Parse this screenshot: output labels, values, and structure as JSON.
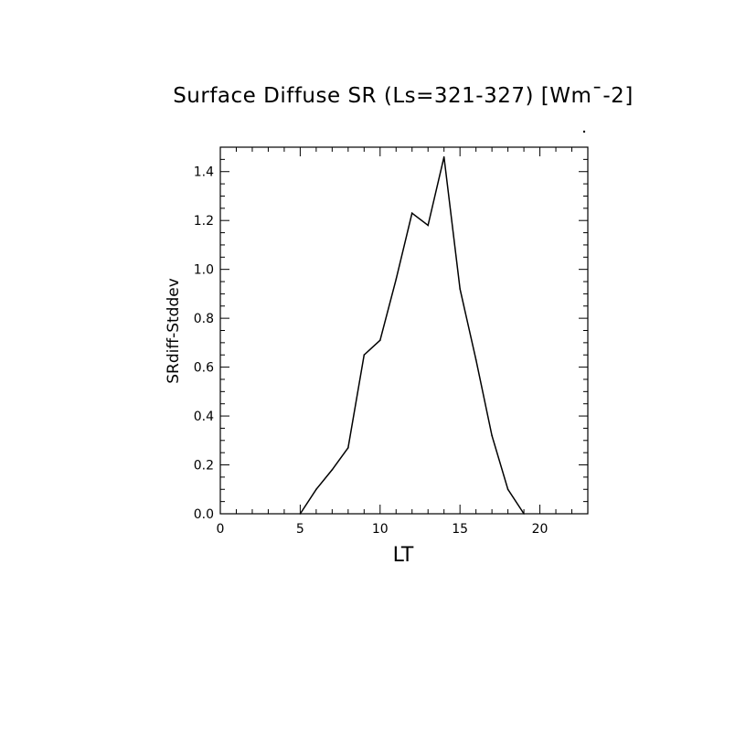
{
  "chart_data": {
    "type": "line",
    "title": "Surface Diffuse SR (Ls=321-327) [Wm¯-2]",
    "xlabel": "LT",
    "ylabel": "SRdiff-Stddev",
    "xlim": [
      0,
      23
    ],
    "ylim": [
      0,
      1.5
    ],
    "grid": false,
    "x_ticks": [
      0,
      5,
      10,
      15,
      20
    ],
    "x_tick_labels": [
      "0",
      "5",
      "10",
      "15",
      "20"
    ],
    "y_ticks": [
      0,
      0.2,
      0.4,
      0.6,
      0.8,
      1.0,
      1.2,
      1.4
    ],
    "y_tick_labels": [
      "0.0",
      "0.2",
      "0.4",
      "0.6",
      "0.8",
      "1.0",
      "1.2",
      "1.4"
    ],
    "series": [
      {
        "x": [
          5,
          6,
          7,
          8,
          9,
          10,
          11,
          12,
          13,
          14,
          15,
          16,
          17,
          18,
          19
        ],
        "values": [
          0.0,
          0.1,
          0.18,
          0.27,
          0.65,
          0.71,
          0.96,
          1.23,
          1.18,
          1.46,
          0.92,
          0.63,
          0.32,
          0.1,
          0.0
        ]
      }
    ]
  },
  "colors": {
    "line": "#000000",
    "axes": "#000000",
    "background": "#ffffff"
  }
}
